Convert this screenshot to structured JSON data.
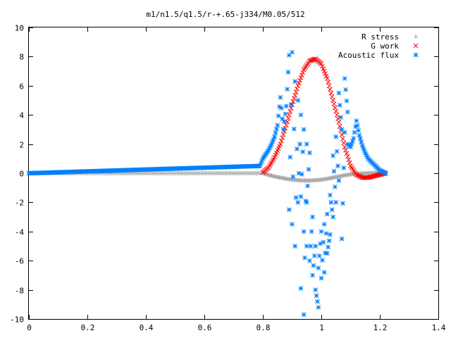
{
  "chart_data": {
    "type": "scatter",
    "title": "m1/n1.5/q1.5/r-+.65-j334/M0.05/512",
    "xlabel": "",
    "ylabel": "",
    "xlim": [
      0,
      1.4
    ],
    "ylim": [
      -10,
      10
    ],
    "xticks": [
      "0",
      "0.2",
      "0.4",
      "0.6",
      "0.8",
      "1",
      "1.2",
      "1.4"
    ],
    "yticks": [
      "10",
      "8",
      "6",
      "4",
      "2",
      "0",
      "-2",
      "-4",
      "-6",
      "-8",
      "-10"
    ],
    "grid": false,
    "legend_position": "top-right",
    "series": [
      {
        "name": "R stress",
        "marker": "+",
        "color": "#a0a0a0",
        "x": [
          0.0,
          0.8,
          0.82,
          0.84,
          0.86,
          0.88,
          0.9,
          0.92,
          0.94,
          0.96,
          0.98,
          1.0,
          1.02,
          1.04,
          1.06,
          1.08,
          1.1,
          1.12,
          1.14,
          1.16,
          1.18,
          1.2,
          1.22
        ],
        "y": [
          0,
          0,
          -0.12,
          -0.22,
          -0.3,
          -0.38,
          -0.44,
          -0.48,
          -0.5,
          -0.5,
          -0.48,
          -0.44,
          -0.38,
          -0.3,
          -0.22,
          -0.14,
          -0.08,
          -0.04,
          -0.02,
          0.0,
          0.02,
          0.04,
          0.06
        ]
      },
      {
        "name": "G work",
        "marker": "x",
        "color": "#ff0000",
        "x": [
          0.8,
          0.82,
          0.84,
          0.86,
          0.88,
          0.9,
          0.92,
          0.94,
          0.96,
          0.98,
          1.0,
          1.02,
          1.04,
          1.06,
          1.08,
          1.1,
          1.12,
          1.14,
          1.16,
          1.18,
          1.2,
          1.22
        ],
        "y": [
          0.05,
          0.4,
          1.1,
          2.0,
          3.3,
          4.7,
          6.0,
          7.1,
          7.7,
          7.85,
          7.5,
          6.5,
          5.0,
          3.5,
          1.8,
          0.5,
          -0.1,
          -0.3,
          -0.3,
          -0.2,
          -0.1,
          0.0
        ]
      },
      {
        "name": "Acoustic flux",
        "marker": "*",
        "color": "#0080ff",
        "x": [
          0.0,
          0.79,
          0.8,
          0.81,
          0.82,
          0.83,
          0.84,
          0.85,
          0.86,
          0.87,
          0.88,
          0.89,
          0.89,
          0.9,
          0.9,
          0.91,
          0.91,
          0.92,
          0.92,
          0.93,
          0.93,
          0.93,
          0.94,
          0.94,
          0.94,
          0.95,
          0.95,
          0.95,
          0.96,
          0.96,
          0.97,
          0.97,
          0.98,
          0.98,
          0.99,
          0.99,
          1.0,
          1.0,
          1.01,
          1.01,
          1.02,
          1.02,
          1.03,
          1.03,
          1.04,
          1.04,
          1.05,
          1.05,
          1.06,
          1.06,
          1.07,
          1.07,
          1.08,
          1.08,
          1.09,
          1.09,
          1.1,
          1.11,
          1.12,
          1.13,
          1.14,
          1.15,
          1.16,
          1.17,
          1.18,
          1.19,
          1.2,
          1.21,
          1.22
        ],
        "y": [
          0.0,
          0.5,
          1.0,
          1.3,
          1.6,
          2.0,
          2.5,
          3.3,
          5.2,
          3.0,
          4.6,
          8.1,
          -2.5,
          8.3,
          -3.5,
          6.3,
          -5.0,
          5.0,
          -2.0,
          4.0,
          -7.9,
          -1.6,
          3.0,
          -4.0,
          -9.7,
          2.0,
          -5.0,
          -2.0,
          1.4,
          -6.0,
          -3.0,
          -7.0,
          -5.0,
          -8.0,
          -9.2,
          -6.5,
          -4.0,
          -7.2,
          -3.5,
          -6.8,
          -2.8,
          -5.5,
          -4.2,
          -1.5,
          -3.0,
          1.2,
          -2.0,
          2.5,
          -0.5,
          5.5,
          3.0,
          -4.5,
          2.8,
          6.5,
          4.2,
          2.0,
          1.8,
          2.4,
          3.6,
          2.6,
          1.9,
          1.4,
          1.0,
          0.8,
          0.6,
          0.4,
          0.2,
          0.1,
          0.0
        ]
      }
    ]
  }
}
